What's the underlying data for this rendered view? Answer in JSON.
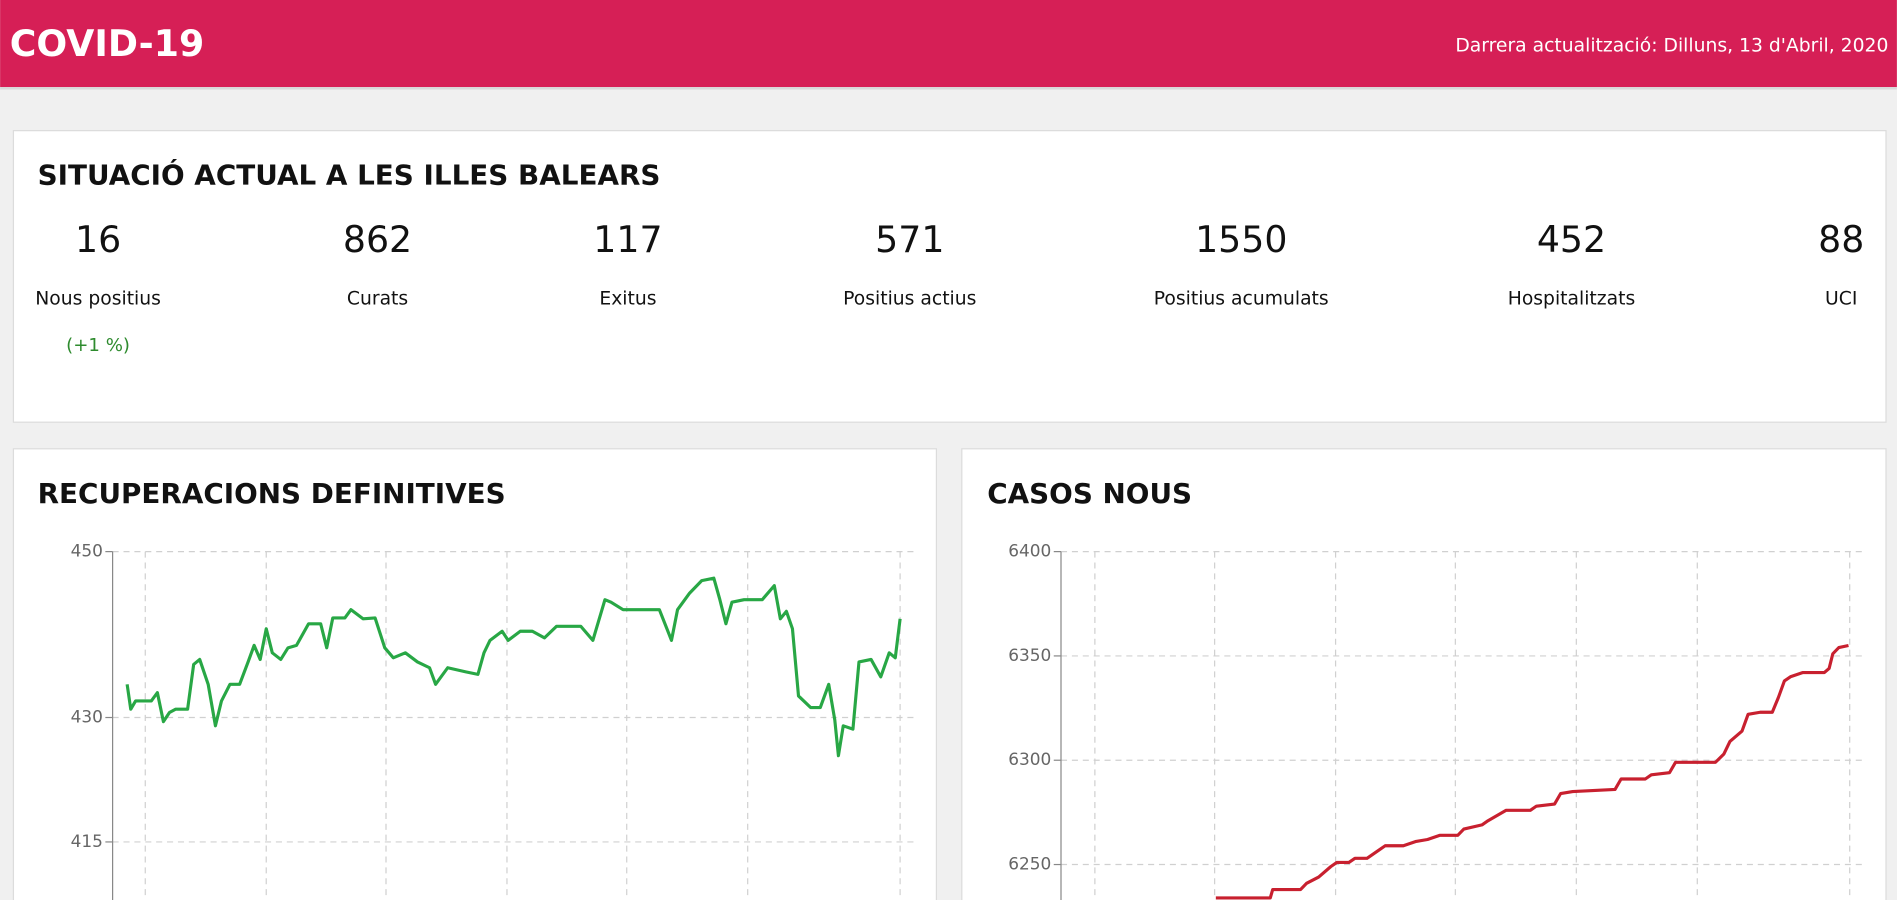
{
  "header": {
    "title": "COVID-19",
    "updated": "Darrera actualització: Dilluns, 13 d'Abril, 2020"
  },
  "summary": {
    "title": "SITUACIÓ ACTUAL A LES ILLES BALEARS",
    "items": [
      {
        "value": 16,
        "label": "Nous positius",
        "change": "(+1 %)"
      },
      {
        "value": 862,
        "label": "Curats"
      },
      {
        "value": 117,
        "label": "Exitus"
      },
      {
        "value": 571,
        "label": "Positius actius"
      },
      {
        "value": 1550,
        "label": "Positius acumulats"
      },
      {
        "value": 452,
        "label": "Hospitalitzats"
      },
      {
        "value": 88,
        "label": "UCI"
      }
    ]
  },
  "chart_data": [
    {
      "type": "line",
      "title": "RECUPERACIONS DEFINITIVES",
      "color": "#28a745",
      "grid": true,
      "xlim": [
        0,
        66.2
      ],
      "xticks": [
        2.7,
        12.7,
        22.6,
        32.6,
        42.5,
        52.5,
        65.1
      ],
      "ylim": [
        408,
        450
      ],
      "yticks": [
        450,
        430,
        415
      ],
      "x": [
        1.2,
        1.5,
        1.9,
        2.5,
        3.2,
        3.7,
        4.2,
        4.7,
        5.2,
        6.2,
        6.7,
        7.2,
        7.9,
        8.5,
        9,
        9.7,
        10.5,
        11.2,
        11.7,
        12.2,
        12.7,
        13.2,
        13.9,
        14.5,
        15.2,
        16.2,
        17.2,
        17.7,
        18.2,
        19.2,
        19.7,
        20.7,
        21.7,
        22.5,
        23.2,
        24.2,
        25.2,
        26.2,
        26.7,
        27.7,
        29.2,
        30.2,
        30.7,
        31.2,
        32.2,
        32.7,
        33.7,
        34.7,
        35.7,
        36.7,
        37.7,
        38.7,
        39.7,
        40.7,
        41.2,
        42.2,
        44.2,
        45.2,
        46.2,
        46.7,
        47.7,
        48.7,
        49.7,
        50.2,
        50.7,
        51.2,
        52.2,
        53.7,
        54.7,
        55.2,
        55.7,
        56.2,
        56.7,
        57.7,
        58.5,
        59.2,
        59.7,
        60,
        60.4,
        61.2,
        61.7,
        62.7,
        63.5,
        64.2,
        64.7,
        65.1
      ],
      "values": [
        434,
        431,
        432,
        432,
        432,
        433,
        429.5,
        430.6,
        431,
        431,
        436.4,
        437,
        434,
        429,
        432,
        434,
        434,
        436.7,
        438.7,
        437,
        440.7,
        437.8,
        437,
        438.4,
        438.7,
        441.3,
        441.3,
        438.4,
        442,
        442,
        443,
        441.9,
        442,
        438.4,
        437.2,
        437.8,
        436.7,
        436,
        434,
        436,
        435.5,
        435.2,
        437.8,
        439.3,
        440.4,
        439.3,
        440.4,
        440.4,
        439.6,
        441,
        441,
        441,
        439.3,
        444.2,
        443.9,
        443,
        443,
        443,
        439.3,
        443,
        445,
        446.5,
        446.8,
        444.2,
        441.3,
        443.9,
        444.2,
        444.2,
        445.9,
        441.9,
        442.8,
        440.7,
        432.6,
        431.2,
        431.2,
        434,
        429.7,
        425.4,
        429,
        428.6,
        436.7,
        437,
        434.9,
        437.8,
        437.2,
        441.9
      ]
    },
    {
      "type": "line",
      "title": "CASOS NOUS",
      "color": "#c8202f",
      "grid": true,
      "xlim": [
        0,
        66.3
      ],
      "xticks": [
        2.8,
        12.7,
        22.7,
        32.6,
        42.6,
        52.6,
        65.2
      ],
      "ylim": [
        6233,
        6400
      ],
      "yticks": [
        6400,
        6350,
        6300,
        6250
      ],
      "x": [
        12.8,
        17.3,
        17.5,
        19.8,
        20.3,
        21.3,
        22.3,
        22.8,
        23.8,
        24.3,
        25.3,
        26.3,
        26.8,
        28.3,
        29.3,
        30.3,
        31.3,
        32.8,
        33.3,
        34.8,
        35.3,
        36.8,
        38.8,
        39.3,
        40.8,
        41.3,
        42.3,
        45.8,
        46.3,
        48.3,
        48.8,
        50.3,
        50.8,
        54.1,
        54.8,
        55.3,
        56.3,
        56.8,
        57.8,
        58.8,
        59.3,
        59.8,
        60.3,
        61.3,
        63.1,
        63.5,
        63.8,
        64.3,
        65.1
      ],
      "values": [
        6234,
        6234,
        6238,
        6238,
        6241,
        6244,
        6249,
        6251,
        6251,
        6253,
        6253,
        6257,
        6259,
        6259,
        6261,
        6262,
        6264,
        6264,
        6267,
        6269,
        6271,
        6276,
        6276,
        6278,
        6279,
        6284,
        6285,
        6286,
        6291,
        6291,
        6293,
        6294,
        6299,
        6299,
        6303,
        6309,
        6314,
        6322,
        6323,
        6323,
        6330,
        6338,
        6340,
        6342,
        6342,
        6344,
        6351,
        6354,
        6355
      ]
    }
  ]
}
